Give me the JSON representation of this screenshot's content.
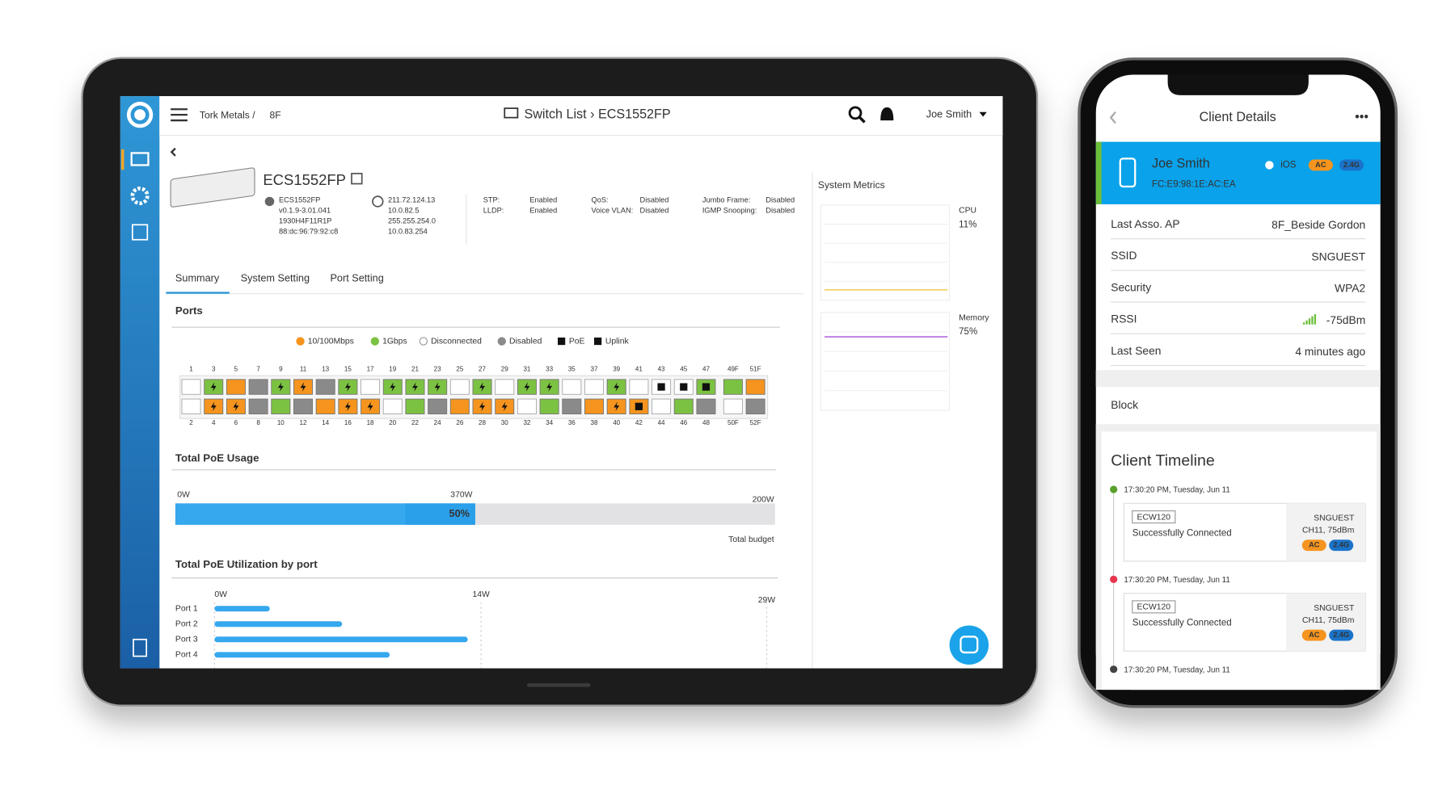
{
  "tablet": {
    "breadcrumb": "Tork Metals /",
    "floor": "8F",
    "page_title": "Switch List › ECS1552FP",
    "user": "Joe Smith",
    "device": {
      "name": "ECS1552FP",
      "info": [
        "ECS1552FP",
        "v0.1.9-3.01.041",
        "1930H4F11R1P",
        "88:dc:96:79:92:c8"
      ],
      "ip": [
        "211.72.124.13",
        "10.0.82.5",
        "255.255.254.0",
        "10.0.83.254"
      ],
      "settings": [
        {
          "key": "STP:",
          "value": "Enabled"
        },
        {
          "key": "LLDP:",
          "value": "Enabled"
        },
        {
          "key": "QoS:",
          "value": "Disabled"
        },
        {
          "key": "Voice VLAN:",
          "value": "Disabled"
        },
        {
          "key": "Jumbo Frame:",
          "value": "Disabled"
        },
        {
          "key": "IGMP Snooping:",
          "value": "Disabled"
        }
      ]
    },
    "tabs": [
      "Summary",
      "System Setting",
      "Port Setting"
    ],
    "ports": {
      "title": "Ports",
      "legend": [
        {
          "label": "10/100Mbps",
          "color": "#f5941e",
          "shape": "circle"
        },
        {
          "label": "1Gbps",
          "color": "#7cc242",
          "shape": "circle"
        },
        {
          "label": "Disconnected",
          "color": "#ffffff",
          "shape": "circle"
        },
        {
          "label": "Disabled",
          "color": "#8a8a8a",
          "shape": "circle"
        },
        {
          "label": "PoE",
          "color": "#111111",
          "shape": "square"
        },
        {
          "label": "Uplink",
          "color": "#111111",
          "shape": "square"
        }
      ],
      "top_labels": [
        "1",
        "3",
        "5",
        "7",
        "9",
        "11",
        "13",
        "15",
        "17",
        "19",
        "21",
        "23",
        "25",
        "27",
        "29",
        "31",
        "33",
        "35",
        "37",
        "39",
        "41",
        "43",
        "45",
        "47",
        "49F",
        "51F"
      ],
      "top_colors": [
        "#ffffff",
        "#7cc242",
        "#f5941e",
        "#8a8a8a",
        "#7cc242",
        "#f5941e",
        "#8a8a8a",
        "#7cc242",
        "#ffffff",
        "#7cc242",
        "#7cc242",
        "#7cc242",
        "#ffffff",
        "#7cc242",
        "#ffffff",
        "#7cc242",
        "#7cc242",
        "#ffffff",
        "#ffffff",
        "#7cc242",
        "#ffffff",
        "#ffffff",
        "#ffffff",
        "#7cc242",
        "#7cc242",
        "#f5941e"
      ],
      "top_icons": [
        null,
        "poe",
        null,
        null,
        "poe",
        "poe",
        null,
        "poe",
        null,
        "poe",
        "poe",
        "poe",
        null,
        "poe",
        null,
        "poe",
        "poe",
        null,
        null,
        "poe",
        null,
        "uplink",
        "uplink",
        "uplink",
        null,
        null
      ],
      "bottom_labels": [
        "2",
        "4",
        "6",
        "8",
        "10",
        "12",
        "14",
        "16",
        "18",
        "20",
        "22",
        "24",
        "26",
        "28",
        "30",
        "32",
        "34",
        "36",
        "38",
        "40",
        "42",
        "44",
        "46",
        "48",
        "50F",
        "52F"
      ],
      "bottom_colors": [
        "#ffffff",
        "#f5941e",
        "#f5941e",
        "#8a8a8a",
        "#7cc242",
        "#8a8a8a",
        "#f5941e",
        "#f5941e",
        "#f5941e",
        "#ffffff",
        "#7cc242",
        "#8a8a8a",
        "#f5941e",
        "#f5941e",
        "#f5941e",
        "#ffffff",
        "#7cc242",
        "#8a8a8a",
        "#f5941e",
        "#f5941e",
        "#f5941e",
        "#ffffff",
        "#7cc242",
        "#8a8a8a",
        "#ffffff",
        "#8a8a8a"
      ],
      "bottom_icons": [
        null,
        "poe",
        "poe",
        null,
        null,
        null,
        null,
        "poe",
        "poe",
        null,
        null,
        null,
        null,
        "poe",
        "poe",
        null,
        null,
        null,
        null,
        "poe",
        "uplink",
        null,
        null,
        null,
        null,
        null
      ]
    },
    "poe_usage": {
      "title": "Total PoE Usage",
      "labels": [
        "0W",
        "370W",
        "200W"
      ],
      "percent": 50,
      "percent_label": "50%",
      "footer": "Total budget",
      "color": "#35a8ee"
    },
    "poe_by_port": {
      "title": "Total PoE Utilization by port",
      "categories": [
        "Port 1",
        "Port 2",
        "Port 3",
        "Port 4"
      ],
      "values": [
        2.9,
        6.7,
        13.3,
        9.2
      ],
      "color": "#35a8ee",
      "xlim": [
        0,
        29
      ],
      "xticks": [
        {
          "value": 0,
          "label": "0W"
        },
        {
          "value": 14,
          "label": "14W"
        },
        {
          "value": 29,
          "label": "29W"
        }
      ]
    },
    "metrics": {
      "title": "System Metrics",
      "items": [
        {
          "label": "CPU",
          "value": 11,
          "value_label": "11%",
          "color": "#f2d36b"
        },
        {
          "label": "Memory",
          "value": 75,
          "value_label": "75%",
          "color": "#b26be0"
        }
      ]
    }
  },
  "phone": {
    "title": "Client Details",
    "client": {
      "name": "Joe Smith",
      "os": "iOS",
      "badges": [
        "AC",
        "2.4G"
      ],
      "mac": "FC:E9:98:1E:AC:EA"
    },
    "rows": [
      {
        "key": "Last Asso. AP",
        "value": "8F_Beside Gordon"
      },
      {
        "key": "SSID",
        "value": "SNGUEST"
      },
      {
        "key": "Security",
        "value": "WPA2"
      },
      {
        "key": "RSSI",
        "value": "-75dBm"
      },
      {
        "key": "Last Seen",
        "value": "4 minutes ago"
      }
    ],
    "action": "Block",
    "timeline_title": "Client Timeline",
    "events": [
      {
        "time": "17:30:20 PM, Tuesday, Jun 11",
        "color": "#5aa02c",
        "device": "ECW120",
        "status": "Successfully Connected",
        "ssid": "SNGUEST",
        "channel": "CH11, 75dBm",
        "badges": [
          "AC",
          "2.4G"
        ]
      },
      {
        "time": "17:30:20 PM, Tuesday, Jun 11",
        "color": "#e8344e",
        "device": "ECW120",
        "status": "Successfully Connected",
        "ssid": "SNGUEST",
        "channel": "CH11, 75dBm",
        "badges": [
          "AC",
          "2.4G"
        ]
      },
      {
        "time": "17:30:20 PM, Tuesday, Jun 11",
        "color": "#444444"
      }
    ]
  }
}
